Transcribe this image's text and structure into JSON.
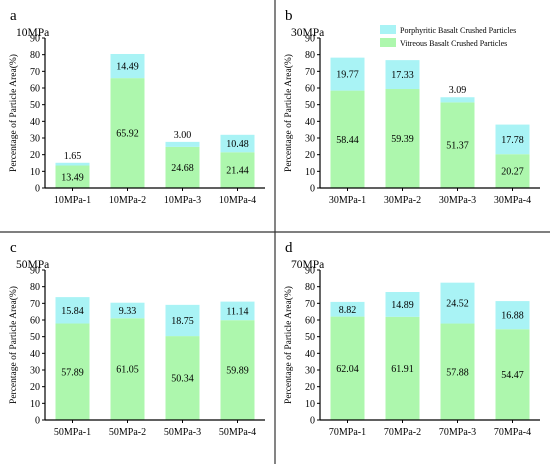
{
  "colors": {
    "vitreous": "#adf7ad",
    "porphyritic": "#a9f3f5",
    "axis": "#000000",
    "divider": "#333333"
  },
  "legend": {
    "items": [
      "Porphyritic Basalt Crushed Particles",
      "Vitreous Basalt Crushed Particles"
    ]
  },
  "chart_data": [
    {
      "type": "bar",
      "stacked": true,
      "letter": "a",
      "title": "10MPa",
      "ylabel": "Percentage of Particle Area(%)",
      "ylim": [
        0,
        90
      ],
      "yticks": [
        "0",
        "10",
        "20",
        "30",
        "40",
        "50",
        "60",
        "70",
        "80",
        "90"
      ],
      "categories": [
        "10MPa-1",
        "10MPa-2",
        "10MPa-3",
        "10MPa-4"
      ],
      "series": [
        {
          "name": "Vitreous Basalt Crushed Particles",
          "values": [
            13.49,
            65.92,
            24.68,
            21.44
          ],
          "labels": [
            "13.49",
            "65.92",
            "24.68",
            "21.44"
          ]
        },
        {
          "name": "Porphyritic Basalt Crushed Particles",
          "values": [
            1.65,
            14.49,
            3.0,
            10.48
          ],
          "labels": [
            "1.65",
            "14.49",
            "3.00",
            "10.48"
          ]
        }
      ]
    },
    {
      "type": "bar",
      "stacked": true,
      "letter": "b",
      "title": "30MPa",
      "ylabel": "Percentage of Particle Area(%)",
      "ylim": [
        0,
        90
      ],
      "yticks": [
        "0",
        "10",
        "20",
        "30",
        "40",
        "50",
        "60",
        "70",
        "80",
        "90"
      ],
      "categories": [
        "30MPa-1",
        "30MPa-2",
        "30MPa-3",
        "30MPa-4"
      ],
      "series": [
        {
          "name": "Vitreous Basalt Crushed Particles",
          "values": [
            58.44,
            59.39,
            51.37,
            20.27
          ],
          "labels": [
            "58.44",
            "59.39",
            "51.37",
            "20.27"
          ]
        },
        {
          "name": "Porphyritic Basalt Crushed Particles",
          "values": [
            19.77,
            17.33,
            3.09,
            17.78
          ],
          "labels": [
            "19.77",
            "17.33",
            "3.09",
            "17.78"
          ]
        }
      ]
    },
    {
      "type": "bar",
      "stacked": true,
      "letter": "c",
      "title": "50MPa",
      "ylabel": "Percentage of Particle Area(%)",
      "ylim": [
        0,
        90
      ],
      "yticks": [
        "0",
        "10",
        "20",
        "30",
        "40",
        "50",
        "60",
        "70",
        "80",
        "90"
      ],
      "categories": [
        "50MPa-1",
        "50MPa-2",
        "50MPa-3",
        "50MPa-4"
      ],
      "series": [
        {
          "name": "Vitreous Basalt Crushed Particles",
          "values": [
            57.89,
            61.05,
            50.34,
            59.89
          ],
          "labels": [
            "57.89",
            "61.05",
            "50.34",
            "59.89"
          ]
        },
        {
          "name": "Porphyritic Basalt Crushed Particles",
          "values": [
            15.84,
            9.33,
            18.75,
            11.14
          ],
          "labels": [
            "15.84",
            "9.33",
            "18.75",
            "11.14"
          ]
        }
      ]
    },
    {
      "type": "bar",
      "stacked": true,
      "letter": "d",
      "title": "70MPa",
      "ylabel": "Percentage of Particle Area(%)",
      "ylim": [
        0,
        90
      ],
      "yticks": [
        "0",
        "10",
        "20",
        "30",
        "40",
        "50",
        "60",
        "70",
        "80",
        "90"
      ],
      "categories": [
        "70MPa-1",
        "70MPa-2",
        "70MPa-3",
        "70MPa-4"
      ],
      "series": [
        {
          "name": "Vitreous Basalt Crushed Particles",
          "values": [
            62.04,
            61.91,
            57.88,
            54.47
          ],
          "labels": [
            "62.04",
            "61.91",
            "57.88",
            "54.47"
          ]
        },
        {
          "name": "Porphyritic Basalt Crushed Particles",
          "values": [
            8.82,
            14.89,
            24.52,
            16.88
          ],
          "labels": [
            "8.82",
            "14.89",
            "24.52",
            "16.88"
          ]
        }
      ]
    }
  ]
}
